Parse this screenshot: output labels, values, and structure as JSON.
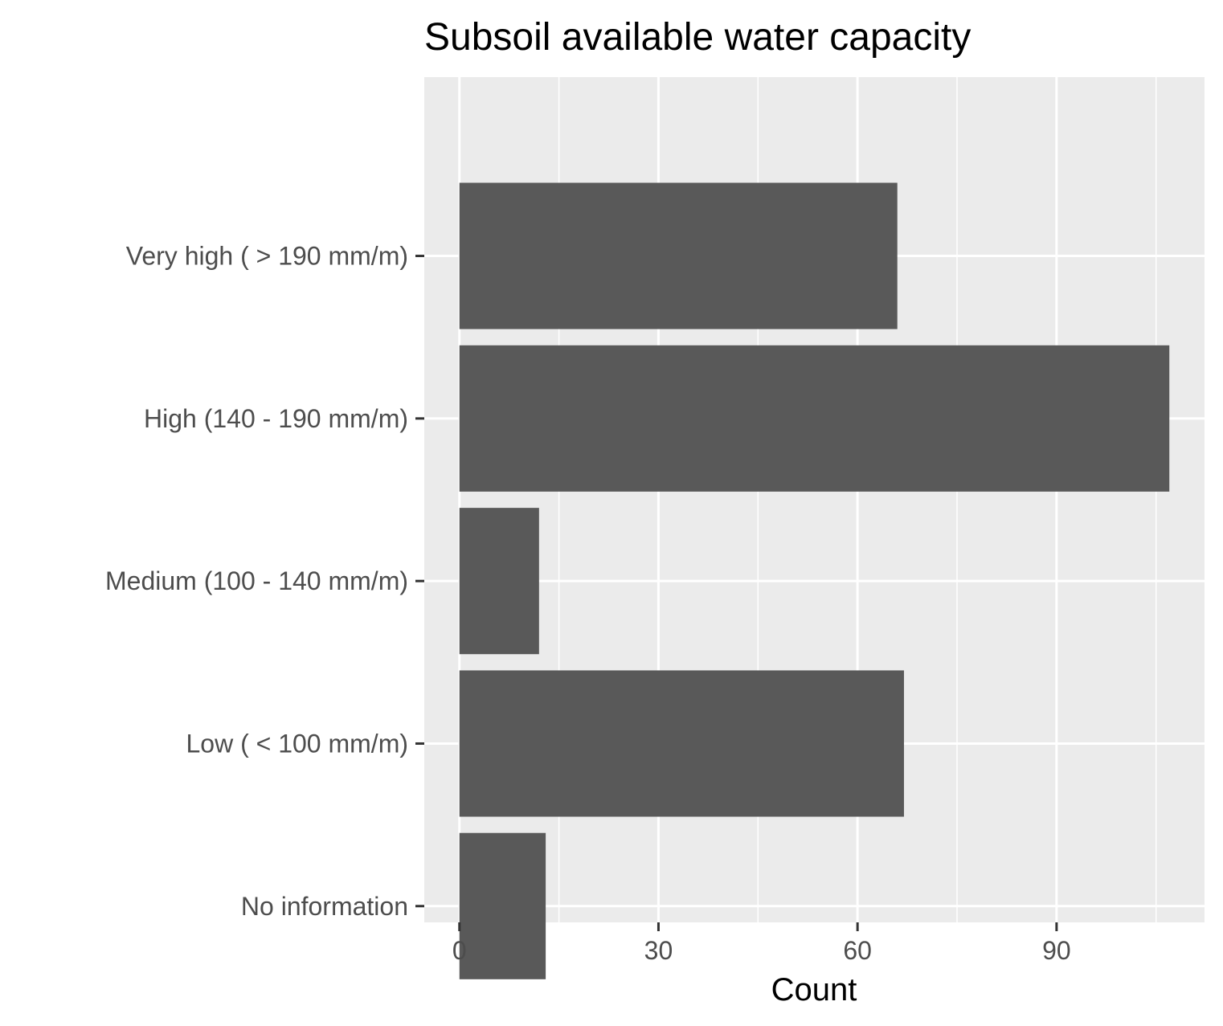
{
  "chart_data": {
    "type": "bar",
    "orientation": "horizontal",
    "title": "Subsoil available water capacity",
    "xlabel": "Count",
    "ylabel": "",
    "categories": [
      "Very high ( > 190 mm/m)",
      "High (140 - 190 mm/m)",
      "Medium (100 - 140 mm/m)",
      "Low ( < 100 mm/m)",
      "No information"
    ],
    "values": [
      66,
      107,
      12,
      67,
      13
    ],
    "xlim": [
      -5.3,
      112.3
    ],
    "xticks": [
      0,
      30,
      60,
      90
    ],
    "xtick_labels": [
      "0",
      "30",
      "60",
      "90"
    ],
    "grid": true,
    "panel_background": "#ebebeb",
    "bar_color": "#595959",
    "grid_color": "#ffffff"
  }
}
